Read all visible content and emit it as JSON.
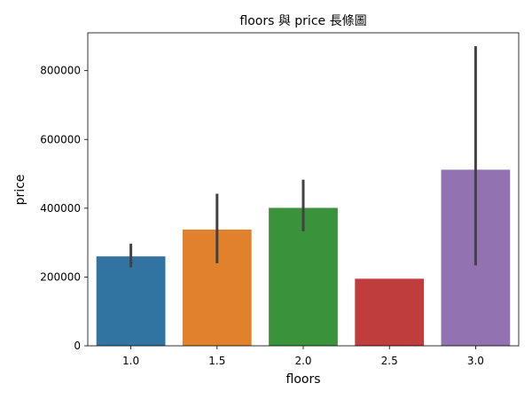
{
  "chart_data": {
    "type": "bar",
    "title": "floors 與 price 長條圖",
    "xlabel": "floors",
    "ylabel": "price",
    "categories": [
      "1.0",
      "1.5",
      "2.0",
      "2.5",
      "3.0"
    ],
    "values": [
      260000,
      338000,
      401000,
      195000,
      512000
    ],
    "error_bars": [
      {
        "low": 228000,
        "high": 297000
      },
      {
        "low": 240000,
        "high": 442000
      },
      {
        "low": 333000,
        "high": 483000
      },
      null,
      {
        "low": 234000,
        "high": 871000
      }
    ],
    "colors": [
      "#3274a1",
      "#e1812c",
      "#3a923a",
      "#c03d3e",
      "#9372b2"
    ],
    "error_bar_color": "#424242",
    "ylim": [
      0,
      910000
    ],
    "yticks": [
      0,
      200000,
      400000,
      600000,
      800000
    ],
    "ytick_labels": [
      "0",
      "200000",
      "400000",
      "600000",
      "800000"
    ],
    "grid": false,
    "legend": "none"
  }
}
